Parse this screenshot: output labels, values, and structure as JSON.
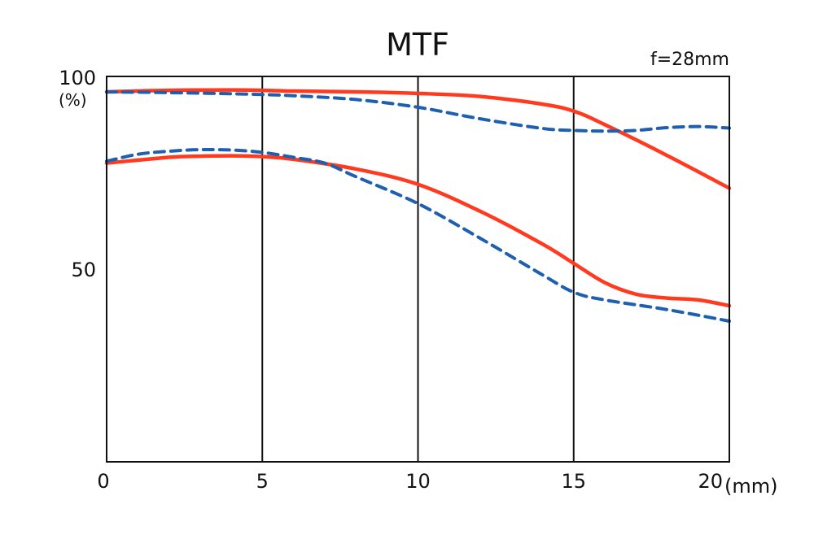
{
  "chart_data": {
    "type": "line",
    "title": "MTF",
    "subtitle": "f=28mm",
    "xlim": [
      0,
      20
    ],
    "ylim": [
      0,
      100
    ],
    "x_ticks": [
      "0",
      "5",
      "10",
      "15",
      "20"
    ],
    "x_unit": "(mm)",
    "y_ticks": [
      "50",
      "100"
    ],
    "y_unit": "(%)",
    "grid": "vertical",
    "series": [
      {
        "style": "solid",
        "color": "#ff3a1f",
        "x": [
          0,
          2,
          4,
          5,
          6,
          8,
          10,
          12,
          14,
          15,
          16,
          18,
          20
        ],
        "y": [
          96.0,
          96.4,
          96.5,
          96.4,
          96.2,
          96.0,
          95.6,
          94.8,
          92.8,
          91.0,
          87.5,
          79.5,
          71.0
        ]
      },
      {
        "style": "dashed",
        "color": "#1f5fb0",
        "x": [
          0,
          2,
          4,
          5,
          6,
          8,
          10,
          12,
          14,
          15,
          16,
          17,
          18,
          19,
          20
        ],
        "y": [
          96.0,
          95.8,
          95.5,
          95.3,
          95.0,
          94.0,
          92.0,
          89.0,
          86.5,
          86.0,
          85.8,
          86.0,
          86.7,
          87.0,
          86.6
        ]
      },
      {
        "style": "solid",
        "color": "#ff3a1f",
        "x": [
          0,
          2,
          3,
          4,
          5,
          6,
          8,
          10,
          12,
          14,
          15,
          16,
          17,
          18,
          19,
          20
        ],
        "y": [
          77.5,
          79.0,
          79.3,
          79.4,
          79.2,
          78.5,
          76.0,
          72.0,
          65.0,
          56.5,
          51.5,
          46.5,
          43.5,
          42.5,
          42.0,
          40.5
        ]
      },
      {
        "style": "dashed",
        "color": "#1f5fb0",
        "x": [
          0,
          1,
          2,
          3,
          4,
          5,
          6,
          7,
          8,
          10,
          12,
          14,
          15,
          16,
          18,
          20
        ],
        "y": [
          78.0,
          79.8,
          80.6,
          81.0,
          80.9,
          80.3,
          79.0,
          77.5,
          74.0,
          67.0,
          58.0,
          48.5,
          44.0,
          42.0,
          39.5,
          36.5
        ]
      }
    ]
  }
}
